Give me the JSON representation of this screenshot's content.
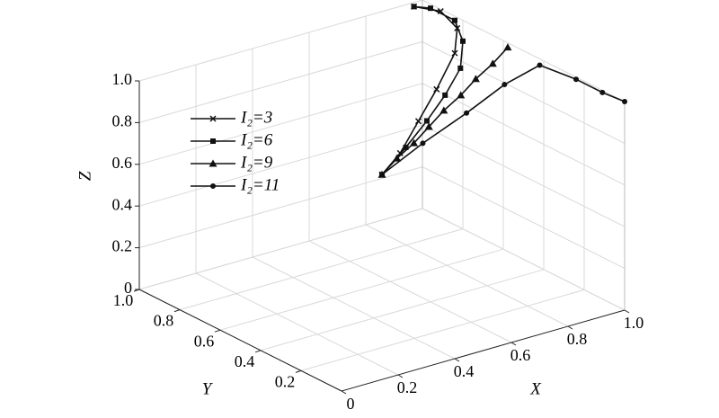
{
  "chart_data": {
    "type": "line3d",
    "xlabel": "X",
    "ylabel": "Y",
    "zlabel": "Z",
    "xlim": [
      0,
      1
    ],
    "ylim": [
      0,
      1
    ],
    "zlim": [
      0,
      1
    ],
    "xticks": [
      0,
      0.2,
      0.4,
      0.6,
      0.8,
      {
        "value": 1,
        "label": "1.0"
      }
    ],
    "yticks": [
      0.2,
      0.4,
      0.6,
      0.8,
      {
        "value": 1,
        "label": "1.0"
      }
    ],
    "zticks": [
      0,
      0.2,
      0.4,
      0.6,
      0.8,
      {
        "value": 1,
        "label": "1.0"
      }
    ],
    "grid": true,
    "legend": "upper left",
    "series": [
      {
        "name": "I₂=3",
        "color": "#111111",
        "marker": "x",
        "x": [
          0.5,
          0.6,
          0.7,
          0.8,
          0.9,
          0.98,
          1.0,
          0.97
        ],
        "y": [
          0.5,
          0.55,
          0.6,
          0.65,
          0.7,
          0.8,
          0.91,
          1.0
        ],
        "z": [
          0.6,
          0.64,
          0.73,
          0.82,
          0.93,
          0.97,
          0.99,
          0.98
        ]
      },
      {
        "name": "I₂=6",
        "color": "#111111",
        "marker": "square",
        "x": [
          0.5,
          0.62,
          0.73,
          0.83,
          0.92,
          1.0,
          1.0,
          1.0,
          0.97
        ],
        "y": [
          0.5,
          0.55,
          0.6,
          0.65,
          0.7,
          0.8,
          0.84,
          0.96,
          1.0
        ],
        "z": [
          0.6,
          0.66,
          0.72,
          0.78,
          0.85,
          0.9,
          0.98,
          0.98,
          0.98
        ]
      },
      {
        "name": "I₂=9",
        "color": "#111111",
        "marker": "triangle",
        "x": [
          0.5,
          0.56,
          0.62,
          0.68,
          0.74,
          0.8,
          0.86,
          0.92,
          0.98
        ],
        "y": [
          0.5,
          0.51,
          0.51,
          0.52,
          0.53,
          0.53,
          0.54,
          0.54,
          0.55
        ],
        "z": [
          0.6,
          0.65,
          0.7,
          0.75,
          0.8,
          0.85,
          0.9,
          0.95,
          1.0
        ]
      },
      {
        "name": "I₂=11",
        "color": "#111111",
        "marker": "circle",
        "x": [
          0.5,
          0.63,
          0.77,
          0.89,
          1.0,
          1.0,
          1.0,
          1.0
        ],
        "y": [
          0.5,
          0.48,
          0.46,
          0.44,
          0.42,
          0.24,
          0.11,
          0.0
        ],
        "z": [
          0.6,
          0.71,
          0.81,
          0.91,
          0.97,
          0.99,
          0.99,
          1.0
        ]
      }
    ]
  }
}
